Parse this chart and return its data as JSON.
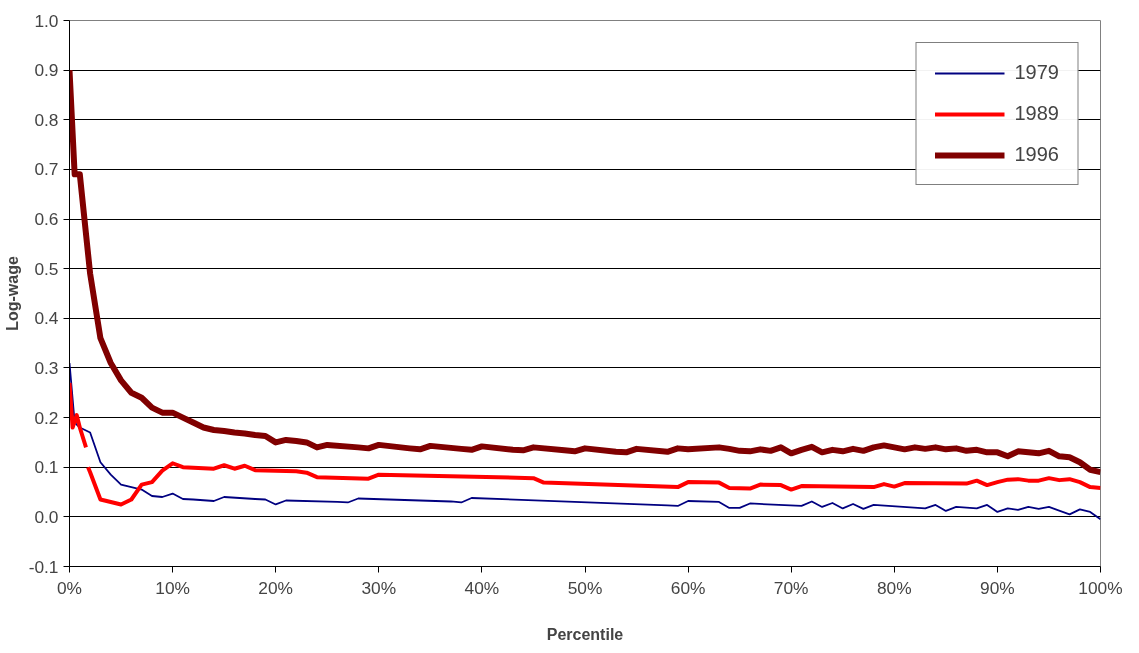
{
  "chart_data": {
    "type": "line",
    "xlabel": "Percentile",
    "ylabel": "Log-wage",
    "xlim": [
      0,
      100
    ],
    "ylim": [
      -0.1,
      1.0
    ],
    "xticks": [
      {
        "value": 0,
        "label": "0%"
      },
      {
        "value": 10,
        "label": "10%"
      },
      {
        "value": 20,
        "label": "20%"
      },
      {
        "value": 30,
        "label": "30%"
      },
      {
        "value": 40,
        "label": "40%"
      },
      {
        "value": 50,
        "label": "50%"
      },
      {
        "value": 60,
        "label": "60%"
      },
      {
        "value": 70,
        "label": "70%"
      },
      {
        "value": 80,
        "label": "80%"
      },
      {
        "value": 90,
        "label": "90%"
      },
      {
        "value": 100,
        "label": "100%"
      }
    ],
    "yticks": [
      {
        "value": -0.1,
        "label": "-0.1"
      },
      {
        "value": 0,
        "label": "0.0"
      },
      {
        "value": 0.1,
        "label": "0.1"
      },
      {
        "value": 0.2,
        "label": "0.2"
      },
      {
        "value": 0.3,
        "label": "0.3"
      },
      {
        "value": 0.4,
        "label": "0.4"
      },
      {
        "value": 0.5,
        "label": "0.5"
      },
      {
        "value": 0.6,
        "label": "0.6"
      },
      {
        "value": 0.7,
        "label": "0.7"
      },
      {
        "value": 0.8,
        "label": "0.8"
      },
      {
        "value": 0.9,
        "label": "0.9"
      },
      {
        "value": 1.0,
        "label": "1.0"
      }
    ],
    "grid": "y",
    "legend": "top right",
    "marker": "none",
    "line_style": "solid",
    "series": [
      {
        "name": "1979",
        "color": "#000080",
        "x": [
          0,
          0.5,
          1,
          2,
          3,
          4,
          5,
          6,
          7,
          8,
          9,
          10,
          11,
          12,
          14,
          15,
          18,
          19,
          20,
          21,
          26,
          27,
          28,
          37,
          38,
          39,
          58,
          59,
          60,
          63,
          64,
          65,
          66,
          71,
          72,
          73,
          74,
          75,
          76,
          77,
          78,
          83,
          84,
          85,
          86,
          88,
          89,
          90,
          91,
          92,
          93,
          94,
          95,
          97,
          98,
          99,
          100
        ],
        "values": [
          0.31,
          0.19,
          0.18,
          0.17,
          0.11,
          0.085,
          0.065,
          0.06,
          0.055,
          0.042,
          0.04,
          0.047,
          0.036,
          0.035,
          0.032,
          0.04,
          0.036,
          0.035,
          0.025,
          0.033,
          0.03,
          0.029,
          0.037,
          0.031,
          0.029,
          0.038,
          0.023,
          0.022,
          0.032,
          0.03,
          0.018,
          0.018,
          0.027,
          0.022,
          0.031,
          0.02,
          0.028,
          0.017,
          0.026,
          0.016,
          0.024,
          0.017,
          0.024,
          0.012,
          0.02,
          0.017,
          0.024,
          0.01,
          0.017,
          0.014,
          0.02,
          0.016,
          0.02,
          0.005,
          0.015,
          0.01,
          -0.005
        ]
      },
      {
        "name": "1989",
        "color": "#ff0000",
        "x": [
          0,
          0.3,
          0.7,
          1,
          1.6,
          1.7,
          1.8,
          2,
          3,
          4,
          5,
          6,
          7,
          8,
          9,
          10,
          11,
          13,
          14,
          15,
          16,
          17,
          18,
          22,
          23,
          24,
          29,
          30,
          45,
          46,
          59,
          60,
          63,
          64,
          66,
          67,
          69,
          70,
          71,
          78,
          79,
          80,
          81,
          87,
          88,
          89,
          90,
          91,
          92,
          93,
          94,
          95,
          96,
          97,
          98,
          99,
          100
        ],
        "values": [
          0.27,
          0.18,
          0.205,
          0.18,
          0.14,
          null,
          0.1,
          0.09,
          0.035,
          0.03,
          0.025,
          0.035,
          0.065,
          0.07,
          0.093,
          0.108,
          0.1,
          0.098,
          0.097,
          0.104,
          0.097,
          0.103,
          0.094,
          0.092,
          0.089,
          0.08,
          0.077,
          0.085,
          0.078,
          0.069,
          0.06,
          0.07,
          0.069,
          0.058,
          0.057,
          0.065,
          0.064,
          0.055,
          0.062,
          0.06,
          0.066,
          0.061,
          0.068,
          0.067,
          0.073,
          0.064,
          0.07,
          0.075,
          0.076,
          0.073,
          0.073,
          0.078,
          0.074,
          0.076,
          0.07,
          0.06,
          0.058
        ]
      },
      {
        "name": "1996",
        "color": "#800000",
        "x": [
          0,
          0.5,
          1,
          2,
          3,
          4,
          5,
          6,
          7,
          8,
          9,
          10,
          11,
          12,
          13,
          14,
          15,
          16,
          17,
          18,
          19,
          20,
          21,
          22,
          23,
          24,
          25,
          28,
          29,
          30,
          33,
          34,
          35,
          38,
          39,
          40,
          43,
          44,
          45,
          48,
          49,
          50,
          53,
          54,
          55,
          58,
          59,
          60,
          63,
          64,
          65,
          66,
          67,
          68,
          69,
          70,
          71,
          72,
          73,
          74,
          75,
          76,
          77,
          78,
          79,
          80,
          81,
          82,
          83,
          84,
          85,
          86,
          87,
          88,
          89,
          90,
          91,
          92,
          93,
          94,
          95,
          96,
          97,
          98,
          99,
          100
        ],
        "values": [
          0.9,
          0.69,
          0.69,
          0.49,
          0.36,
          0.31,
          0.275,
          0.25,
          0.24,
          0.22,
          0.21,
          0.21,
          0.2,
          0.19,
          0.18,
          0.175,
          0.173,
          0.17,
          0.168,
          0.165,
          0.163,
          0.15,
          0.155,
          0.153,
          0.15,
          0.14,
          0.145,
          0.14,
          0.138,
          0.145,
          0.138,
          0.136,
          0.143,
          0.137,
          0.135,
          0.142,
          0.135,
          0.134,
          0.14,
          0.134,
          0.132,
          0.138,
          0.131,
          0.13,
          0.137,
          0.131,
          0.138,
          0.136,
          0.14,
          0.137,
          0.133,
          0.132,
          0.136,
          0.133,
          0.14,
          0.128,
          0.135,
          0.141,
          0.13,
          0.135,
          0.132,
          0.137,
          0.133,
          0.14,
          0.144,
          0.14,
          0.136,
          0.14,
          0.137,
          0.14,
          0.136,
          0.138,
          0.133,
          0.135,
          0.13,
          0.13,
          0.122,
          0.132,
          0.13,
          0.128,
          0.133,
          0.122,
          0.12,
          0.11,
          0.095,
          0.09
        ]
      }
    ]
  }
}
